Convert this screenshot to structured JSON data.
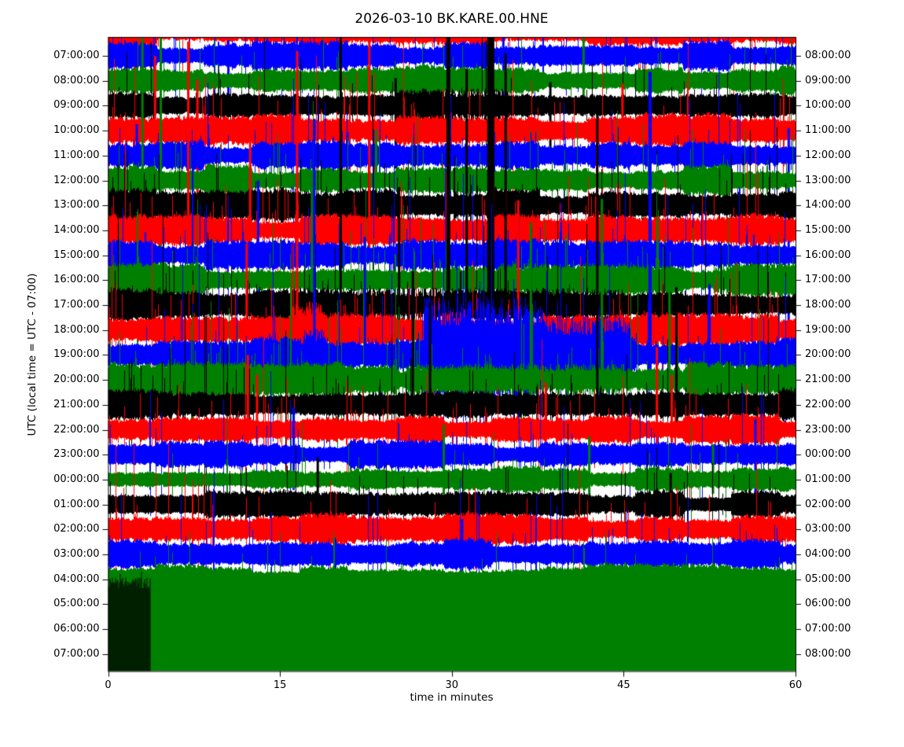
{
  "chart_data": {
    "type": "seismic_dayplot",
    "title": "2026-03-10 BK.KARE.00.HNE",
    "xlabel": "time in minutes",
    "ylabel": "UTC (local time = UTC - 07:00)",
    "xlim": [
      0,
      60
    ],
    "minutes_per_line": 60,
    "x_ticks": [
      0,
      15,
      30,
      45,
      60
    ],
    "x_tick_labels": [
      "0",
      "15",
      "30",
      "45",
      "60"
    ],
    "palette": {
      "red": "#ff0000",
      "blue": "#0000ff",
      "green": "#008000",
      "black": "#000000"
    },
    "color_cycle": [
      "red",
      "blue",
      "green",
      "black"
    ],
    "rows": [
      {
        "left": "",
        "right": "",
        "color": "red",
        "amp": 14,
        "spike_p": 0.06,
        "spike_cap": 110
      },
      {
        "left": "07:00:00",
        "right": "08:00:00",
        "color": "blue",
        "amp": 13,
        "spike_p": 0.06,
        "spike_cap": 120,
        "bigspikes": [
          {
            "x": 34.5,
            "up": 25,
            "down": 60
          },
          {
            "x": 10.5,
            "up": 20,
            "down": 70
          }
        ]
      },
      {
        "left": "08:00:00",
        "right": "09:00:00",
        "color": "green",
        "amp": 13,
        "spike_p": 0.06,
        "spike_cap": 120,
        "bigspikes": [
          {
            "x": 41.5,
            "up": 60,
            "down": 25
          }
        ]
      },
      {
        "left": "09:00:00",
        "right": "10:00:00",
        "color": "black",
        "amp": 14,
        "spike_p": 0.07,
        "spike_cap": 130,
        "events": [
          {
            "x0": 27,
            "x1": 35,
            "amp": 20
          }
        ],
        "bigspikes": [
          {
            "x": 25.1,
            "up": 35,
            "down": 80
          },
          {
            "x": 38.6,
            "up": 30,
            "down": 70
          }
        ]
      },
      {
        "left": "10:00:00",
        "right": "11:00:00",
        "color": "red",
        "amp": 14,
        "spike_p": 0.07,
        "spike_cap": 130,
        "bigspikes": [
          {
            "x": 4.1,
            "up": 95,
            "down": 25
          },
          {
            "x": 7.8,
            "up": 65,
            "down": 110
          },
          {
            "x": 44.9,
            "up": 60,
            "down": 25
          }
        ]
      },
      {
        "left": "11:00:00",
        "right": "12:00:00",
        "color": "blue",
        "amp": 13,
        "spike_p": 0.07,
        "spike_cap": 130,
        "bigspikes": [
          {
            "x": 59.4,
            "up": 35,
            "down": 280
          },
          {
            "x": 20.9,
            "up": 30,
            "down": 115
          },
          {
            "x": 2.5,
            "up": 40,
            "down": 60
          }
        ]
      },
      {
        "left": "12:00:00",
        "right": "13:00:00",
        "color": "green",
        "amp": 13,
        "spike_p": 0.07,
        "spike_cap": 130,
        "bigspikes": [
          {
            "x": 3.0,
            "up": 190,
            "down": 135
          },
          {
            "x": 4.6,
            "up": 200,
            "down": 105
          },
          {
            "x": 23.4,
            "up": 65,
            "down": 45
          }
        ]
      },
      {
        "left": "13:00:00",
        "right": "14:00:00",
        "color": "black",
        "amp": 14,
        "spike_p": 0.09,
        "spike_cap": 150,
        "events": [
          {
            "x0": 20,
            "x1": 24,
            "amp": 19
          }
        ]
      },
      {
        "left": "14:00:00",
        "right": "15:00:00",
        "color": "red",
        "amp": 14,
        "spike_p": 0.09,
        "spike_cap": 150,
        "bigspikes": [
          {
            "x": 7.0,
            "up": 240,
            "down": 40
          },
          {
            "x": 22.8,
            "up": 255,
            "down": 30
          },
          {
            "x": 12.4,
            "up": 120,
            "down": 25
          }
        ]
      },
      {
        "left": "15:00:00",
        "right": "16:00:00",
        "color": "blue",
        "amp": 14,
        "spike_p": 0.09,
        "spike_cap": 160,
        "events": [
          {
            "x0": 33,
            "x1": 40,
            "amp": 19
          }
        ],
        "bigspikes": [
          {
            "x": 13.1,
            "up": 95,
            "down": 95
          }
        ]
      },
      {
        "left": "16:00:00",
        "right": "17:00:00",
        "color": "green",
        "amp": 14,
        "spike_p": 0.09,
        "spike_cap": 160,
        "events": [
          {
            "x0": 34,
            "x1": 42,
            "amp": 20
          },
          {
            "x0": 53,
            "x1": 59.8,
            "amp": 20
          }
        ],
        "bigspikes": [
          {
            "x": 17.8,
            "up": 125,
            "down": 65
          }
        ]
      },
      {
        "left": "17:00:00",
        "right": "18:00:00",
        "color": "black",
        "amp": 15,
        "spike_p": 0.1,
        "spike_cap": 180,
        "events": [
          {
            "x0": 15,
            "x1": 45,
            "amp": 20
          }
        ],
        "bigspikes": [
          {
            "x": 20.3,
            "up": 345,
            "down": 30
          },
          {
            "x": 29.7,
            "up": 340,
            "down": 28,
            "w": 5
          },
          {
            "x": 31.3,
            "up": 300,
            "down": 45
          },
          {
            "x": 33.4,
            "up": 345,
            "down": 30,
            "w": 9
          },
          {
            "x": 34.7,
            "up": 320,
            "down": 28
          },
          {
            "x": 25.4,
            "up": 150,
            "down": 22
          }
        ]
      },
      {
        "left": "18:00:00",
        "right": "19:00:00",
        "color": "red",
        "amp": 14,
        "spike_p": 0.1,
        "spike_cap": 170,
        "events": [
          {
            "x0": 16,
            "x1": 18.6,
            "amp": 33
          },
          {
            "x0": 29,
            "x1": 31,
            "amp": 22
          }
        ],
        "bigspikes": [
          {
            "x": 16.5,
            "up": 355,
            "down": 60
          },
          {
            "x": 35.8,
            "up": 165,
            "down": 115
          },
          {
            "x": 12.1,
            "up": 110,
            "down": 30
          }
        ]
      },
      {
        "left": "19:00:00",
        "right": "20:00:00",
        "color": "blue",
        "amp": 16,
        "spike_p": 0.1,
        "spike_cap": 200,
        "events": [
          {
            "x0": 17,
            "x1": 19,
            "amp": 30
          },
          {
            "x0": 27.5,
            "x1": 38,
            "amp": 68
          },
          {
            "x0": 38,
            "x1": 45.6,
            "amp": 45
          }
        ],
        "bigspikes": [
          {
            "x": 47.3,
            "up": 360,
            "down": 45,
            "w": 4
          },
          {
            "x": 18.0,
            "up": 300,
            "down": 60
          },
          {
            "x": 22.4,
            "up": 150,
            "down": 45
          },
          {
            "x": 52.5,
            "up": 90,
            "down": 35
          }
        ]
      },
      {
        "left": "20:00:00",
        "right": "21:00:00",
        "color": "green",
        "amp": 15,
        "spike_p": 0.09,
        "spike_cap": 160,
        "events": [
          {
            "x0": 26,
            "x1": 45,
            "amp": 19
          }
        ],
        "bigspikes": [
          {
            "x": 36.9,
            "up": 200,
            "down": 35
          },
          {
            "x": 43.1,
            "up": 230,
            "down": 35
          },
          {
            "x": 49.0,
            "up": 125,
            "down": 25
          }
        ]
      },
      {
        "left": "21:00:00",
        "right": "22:00:00",
        "color": "black",
        "amp": 14,
        "spike_p": 0.08,
        "spike_cap": 150,
        "bigspikes": [
          {
            "x": 26.6,
            "up": 170,
            "down": 28
          },
          {
            "x": 28.1,
            "up": 130,
            "down": 22
          },
          {
            "x": 42.7,
            "up": 380,
            "down": 28
          },
          {
            "x": 49.6,
            "up": 150,
            "down": 24
          }
        ]
      },
      {
        "left": "22:00:00",
        "right": "23:00:00",
        "color": "red",
        "amp": 13,
        "spike_p": 0.07,
        "spike_cap": 130,
        "bigspikes": [
          {
            "x": 12.2,
            "up": 95,
            "down": 18
          },
          {
            "x": 13.0,
            "up": 70,
            "down": 16
          },
          {
            "x": 47.9,
            "up": 105,
            "down": 18
          },
          {
            "x": 49.2,
            "up": 70,
            "down": 16
          },
          {
            "x": 38.2,
            "up": 60,
            "down": 16
          }
        ]
      },
      {
        "left": "23:00:00",
        "right": "00:00:00",
        "color": "blue",
        "amp": 12,
        "spike_p": 0.06,
        "spike_cap": 110,
        "bigspikes": [
          {
            "x": 16.2,
            "up": 60,
            "down": 45
          },
          {
            "x": 56.5,
            "up": 45,
            "down": 60
          }
        ]
      },
      {
        "left": "00:00:00",
        "right": "01:00:00",
        "color": "green",
        "amp": 11,
        "spike_p": 0.06,
        "spike_cap": 100,
        "bigspikes": [
          {
            "x": 29.3,
            "up": 70,
            "down": 18
          },
          {
            "x": 42.0,
            "up": 55,
            "down": 20
          },
          {
            "x": 52.8,
            "up": 45,
            "down": 18
          }
        ]
      },
      {
        "left": "01:00:00",
        "right": "02:00:00",
        "color": "black",
        "amp": 12,
        "spike_p": 0.06,
        "spike_cap": 110,
        "bigspikes": [
          {
            "x": 18.3,
            "up": 60,
            "down": 22
          },
          {
            "x": 49.1,
            "up": 40,
            "down": 95
          }
        ]
      },
      {
        "left": "02:00:00",
        "right": "03:00:00",
        "color": "red",
        "amp": 14,
        "spike_p": 0.06,
        "spike_cap": 110
      },
      {
        "left": "03:00:00",
        "right": "04:00:00",
        "color": "blue",
        "amp": 14,
        "spike_p": 0.06,
        "spike_cap": 110,
        "bigspikes": [
          {
            "x": 30.9,
            "up": 45,
            "down": 35
          }
        ]
      },
      {
        "left": "04:00:00",
        "right": "05:00:00",
        "color": "green",
        "amp": 13,
        "spike_p": 0.05,
        "spike_cap": 60,
        "fill_down": true
      },
      {
        "left": "05:00:00",
        "right": "06:00:00",
        "color": "black",
        "amp": 13,
        "partial_end": 3.7
      },
      {
        "left": "06:00:00",
        "right": "07:00:00",
        "color": "red",
        "no_data": true
      },
      {
        "left": "07:00:00",
        "right": "08:00:00",
        "color": "blue",
        "no_data": true
      }
    ]
  }
}
